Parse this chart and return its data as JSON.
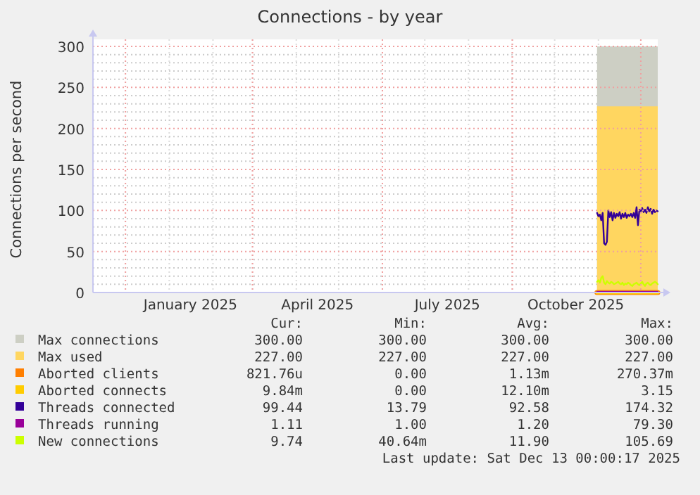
{
  "chart_data": {
    "type": "line",
    "title": "Connections - by year",
    "ylabel": "Connections per second",
    "xlim": [
      "2024-11-08",
      "2025-12-13"
    ],
    "xticks": [
      {
        "value": "2024-12-01",
        "label": null
      },
      {
        "value": "2025-01-16",
        "label": "January 2025"
      },
      {
        "value": "2025-03-01",
        "label": null
      },
      {
        "value": "2025-04-16",
        "label": "April 2025"
      },
      {
        "value": "2025-06-01",
        "label": null
      },
      {
        "value": "2025-07-17",
        "label": "July 2025"
      },
      {
        "value": "2025-09-01",
        "label": null
      },
      {
        "value": "2025-10-16",
        "label": "October 2025"
      },
      {
        "value": "2025-12-01",
        "label": null
      }
    ],
    "ylim": [
      0,
      300
    ],
    "yticks": [
      0,
      50,
      100,
      150,
      200,
      250,
      300
    ],
    "grid": true,
    "legend": "bottom",
    "x": [
      "2025-10-31",
      "2025-11-01",
      "2025-11-02",
      "2025-11-03",
      "2025-11-04",
      "2025-11-05",
      "2025-11-06",
      "2025-11-07",
      "2025-11-08",
      "2025-11-09",
      "2025-11-10",
      "2025-11-11",
      "2025-11-12",
      "2025-11-13",
      "2025-11-14",
      "2025-11-15",
      "2025-11-16",
      "2025-11-17",
      "2025-11-18",
      "2025-11-19",
      "2025-11-20",
      "2025-11-21",
      "2025-11-22",
      "2025-11-23",
      "2025-11-24",
      "2025-11-25",
      "2025-11-26",
      "2025-11-27",
      "2025-11-28",
      "2025-11-29",
      "2025-11-30",
      "2025-12-01",
      "2025-12-02",
      "2025-12-03",
      "2025-12-04",
      "2025-12-05",
      "2025-12-06",
      "2025-12-07",
      "2025-12-08",
      "2025-12-09",
      "2025-12-10",
      "2025-12-11",
      "2025-12-12",
      "2025-12-13"
    ],
    "series": [
      {
        "name": "Max connections",
        "type": "area",
        "color": "#cdcfc4",
        "x": [
          "2025-10-31",
          "2025-12-13"
        ],
        "values": [
          300,
          300
        ]
      },
      {
        "name": "Max used",
        "type": "area",
        "color": "#ffd660",
        "x": [
          "2025-10-31",
          "2025-12-13"
        ],
        "values": [
          227,
          227
        ]
      },
      {
        "name": "Aborted clients",
        "color": "#ff7f00",
        "x": [
          "2025-10-31",
          "2025-12-13"
        ],
        "values": [
          0,
          0
        ]
      },
      {
        "name": "Aborted connects",
        "color": "#ffcc00",
        "x": [
          "2025-10-31",
          "2025-12-13"
        ],
        "values": [
          0,
          0
        ]
      },
      {
        "name": "Threads connected",
        "color": "#330099",
        "values": [
          97,
          93,
          95,
          88,
          97,
          60,
          58,
          62,
          100,
          92,
          98,
          88,
          97,
          91,
          96,
          93,
          98,
          90,
          96,
          92,
          97,
          91,
          95,
          93,
          96,
          92,
          97,
          91,
          104,
          82,
          101,
          99,
          103,
          98,
          101,
          97,
          104,
          99,
          102,
          96,
          101,
          98,
          100,
          99
        ]
      },
      {
        "name": "Threads running",
        "color": "#990099",
        "x": [
          "2025-10-31",
          "2025-12-13"
        ],
        "values": [
          1,
          1
        ]
      },
      {
        "name": "New connections",
        "color": "#ccff00",
        "values": [
          13,
          15,
          12,
          18,
          20,
          12,
          10,
          14,
          12,
          11,
          13,
          12,
          10,
          11,
          12,
          13,
          11,
          10,
          12,
          9,
          11,
          10,
          12,
          11,
          9,
          8,
          10,
          11,
          12,
          10,
          9,
          11,
          13,
          10,
          8,
          11,
          12,
          10,
          9,
          11,
          12,
          13,
          12,
          10
        ]
      }
    ],
    "annotations": [
      "Cur:",
      "Min:",
      "Avg:",
      "Max:",
      "300.00",
      "300.00",
      "300.00",
      "300.00",
      "227.00",
      "227.00",
      "227.00",
      "227.00",
      "821.76u",
      "0.00",
      "1.13m",
      "270.37m",
      "9.84m",
      "0.00",
      "12.10m",
      "3.15",
      "99.44",
      "13.79",
      "92.58",
      "174.32",
      "1.11",
      "1.00",
      "1.20",
      "79.30",
      "9.74",
      "40.64m",
      "11.90",
      "105.69",
      "Last update: Sat Dec 13 00:00:17 2025"
    ]
  }
}
